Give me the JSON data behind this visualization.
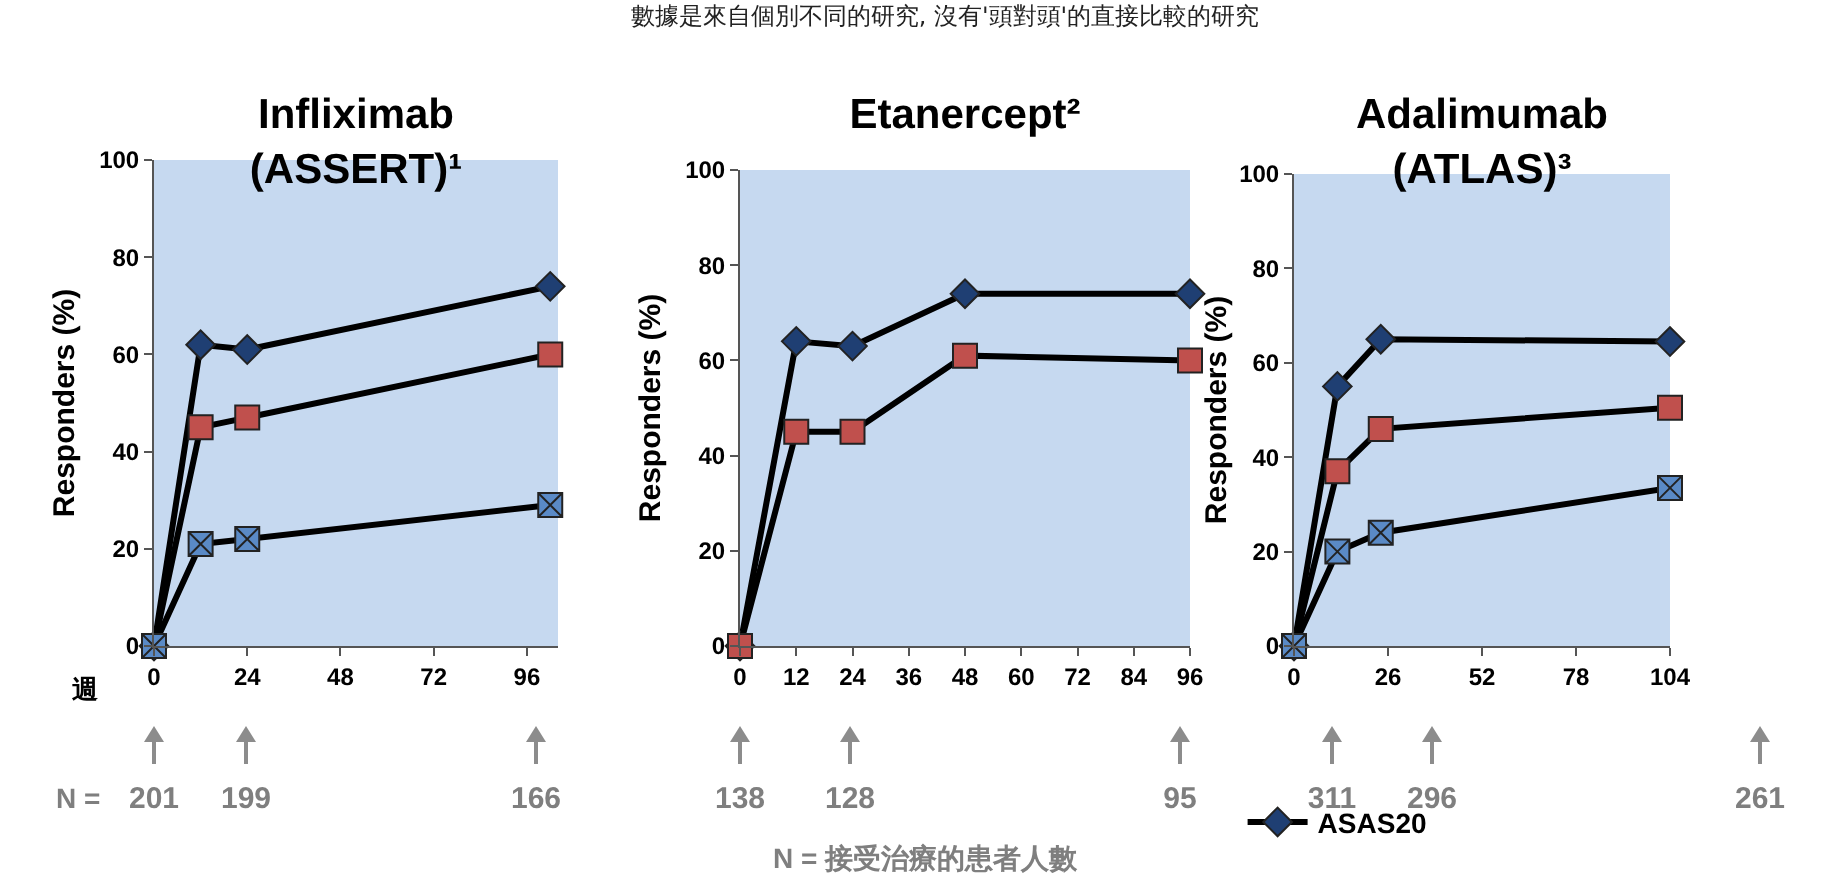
{
  "chart_data": [
    {
      "type": "line",
      "title": "Infliximab\n(ASSERT)¹",
      "xlabel": "週",
      "ylabel": "Responders (%)",
      "xlim": [
        0,
        104
      ],
      "xticks": [
        0,
        24,
        48,
        72,
        96
      ],
      "ylim": [
        0,
        100
      ],
      "yticks": [
        0,
        20,
        40,
        60,
        80,
        100
      ],
      "grid": false,
      "line_style": "solid",
      "series": [
        {
          "name": null,
          "color": "#1f3f73",
          "marker": "diamond",
          "x": [
            0,
            12,
            24,
            102
          ],
          "values": [
            0,
            62,
            61,
            74
          ]
        },
        {
          "name": null,
          "color": "#c0504d",
          "marker": "square",
          "x": [
            0,
            12,
            24,
            102
          ],
          "values": [
            0,
            45,
            47,
            60
          ]
        },
        {
          "name": null,
          "color": "#5a8ac6",
          "marker": "cross",
          "x": [
            0,
            12,
            24,
            102
          ],
          "values": [
            0,
            21,
            22,
            29
          ]
        }
      ],
      "annotations": [
        "N =",
        "201",
        "199",
        "166"
      ]
    },
    {
      "type": "line",
      "title": "Etanercept²",
      "subtitle": "數據是來自個別不同的研究, 沒有'頭對頭'的直接比較的研究",
      "ylabel": "Responders (%)",
      "xlim": [
        0,
        96
      ],
      "xticks": [
        0,
        12,
        24,
        36,
        48,
        60,
        72,
        84,
        96
      ],
      "ylim": [
        0,
        100
      ],
      "yticks": [
        0,
        20,
        40,
        60,
        80,
        100
      ],
      "grid": false,
      "line_style": "solid",
      "series": [
        {
          "name": null,
          "color": "#1f3f73",
          "marker": "diamond",
          "x": [
            0,
            12,
            24,
            48,
            96
          ],
          "values": [
            0,
            64,
            63,
            74,
            74
          ]
        },
        {
          "name": null,
          "color": "#c0504d",
          "marker": "square",
          "x": [
            0,
            12,
            24,
            48,
            96
          ],
          "values": [
            0,
            45,
            45,
            61,
            60
          ]
        }
      ],
      "annotations": [
        "N = 接受治療的患者人數",
        "138",
        "128",
        "95"
      ]
    },
    {
      "type": "line",
      "title": "Adalimumab\n(ATLAS)³",
      "ylabel": "Responders (%)",
      "xlim": [
        0,
        104
      ],
      "xticks": [
        0,
        26,
        52,
        78,
        104
      ],
      "ylim": [
        0,
        100
      ],
      "yticks": [
        0,
        20,
        40,
        60,
        80,
        100
      ],
      "grid": false,
      "line_style": "solid",
      "legend": "bottom",
      "series": [
        {
          "name": "ASAS20",
          "color": "#1f3f73",
          "marker": "diamond",
          "x": [
            0,
            12,
            24,
            104
          ],
          "values": [
            0,
            55,
            65,
            64.5
          ]
        },
        {
          "name": null,
          "color": "#c0504d",
          "marker": "square",
          "x": [
            0,
            12,
            24,
            104
          ],
          "values": [
            0,
            37,
            46,
            50.5
          ]
        },
        {
          "name": null,
          "color": "#5a8ac6",
          "marker": "cross",
          "x": [
            0,
            12,
            24,
            104
          ],
          "values": [
            0,
            20,
            24,
            33.5
          ]
        }
      ],
      "annotations": [
        "311",
        "296",
        "261"
      ]
    }
  ]
}
